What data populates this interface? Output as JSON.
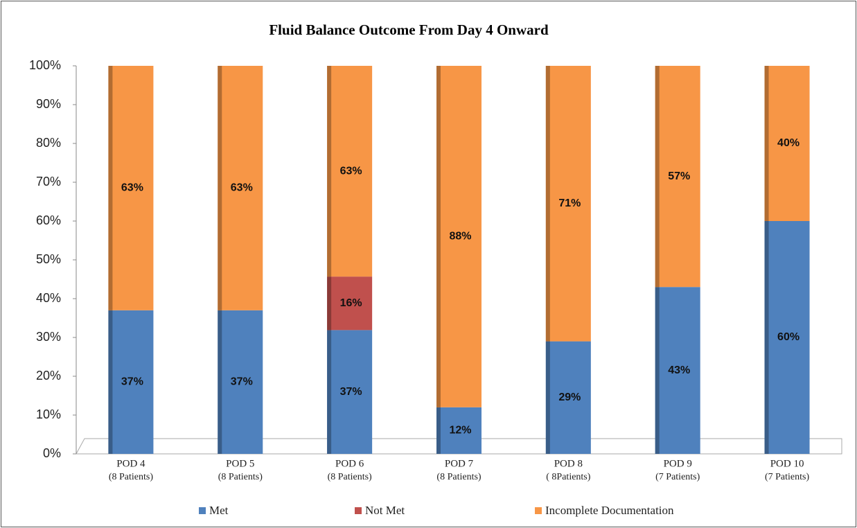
{
  "chart_data": {
    "type": "bar",
    "stack": "percent",
    "title": "Fluid Balance Outcome From Day 4 Onward",
    "categories": [
      [
        "POD 4",
        "(8 Patients)"
      ],
      [
        "POD 5",
        "(8 Patients)"
      ],
      [
        "POD 6",
        "(8 Patients)"
      ],
      [
        "POD 7",
        "(8 Patients)"
      ],
      [
        "POD 8",
        "( 8Patients)"
      ],
      [
        "POD 9",
        "(7 Patients)"
      ],
      [
        "POD 10",
        "(7 Patients)"
      ]
    ],
    "series": [
      {
        "name": "Met",
        "color": "#4f81bd",
        "values": [
          37,
          37,
          37,
          12,
          29,
          43,
          60
        ],
        "value_labels": [
          "37%",
          "37%",
          "37%",
          "12%",
          "29%",
          "43%",
          "60%"
        ]
      },
      {
        "name": "Not Met",
        "color": "#c0504d",
        "values": [
          null,
          null,
          16,
          null,
          null,
          null,
          null
        ],
        "value_labels": [
          null,
          null,
          "16%",
          null,
          null,
          null,
          null
        ]
      },
      {
        "name": "Incomplete Documentation",
        "color": "#f79646",
        "values": [
          63,
          63,
          63,
          88,
          71,
          57,
          40
        ],
        "value_labels": [
          "63%",
          "63%",
          "63%",
          "88%",
          "71%",
          "57%",
          "40%"
        ]
      }
    ],
    "ylim": [
      0,
      100
    ],
    "yticks": [
      {
        "value": 0,
        "label": "0%"
      },
      {
        "value": 10,
        "label": "10%"
      },
      {
        "value": 20,
        "label": "20%"
      },
      {
        "value": 30,
        "label": "30%"
      },
      {
        "value": 40,
        "label": "40%"
      },
      {
        "value": 50,
        "label": "50%"
      },
      {
        "value": 60,
        "label": "60%"
      },
      {
        "value": 70,
        "label": "70%"
      },
      {
        "value": 80,
        "label": "80%"
      },
      {
        "value": 90,
        "label": "90%"
      },
      {
        "value": 100,
        "label": "100%"
      }
    ],
    "grid": false,
    "legend": "bottom"
  }
}
